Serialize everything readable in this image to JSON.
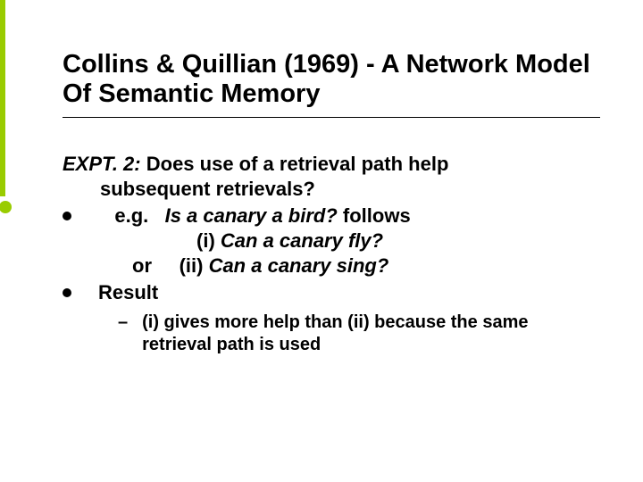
{
  "title": "Collins & Quillian (1969) - A Network Model Of Semantic Memory",
  "expt_label": "EXPT. 2:",
  "expt_q1": " Does use of a retrieval path help",
  "expt_q2": "subsequent retrievals?",
  "eg_label": "e.g.",
  "eg_q": "Is a canary a bird?",
  "eg_follows": " follows",
  "line_i": "(i) ",
  "line_i_q": "Can a canary fly?",
  "or_label": "or",
  "line_ii": "(ii) ",
  "line_ii_q": "Can a canary sing?",
  "result_label": "Result",
  "sub_dash": "–",
  "sub_text": "(i) gives more help than (ii) because the same retrieval path is used"
}
